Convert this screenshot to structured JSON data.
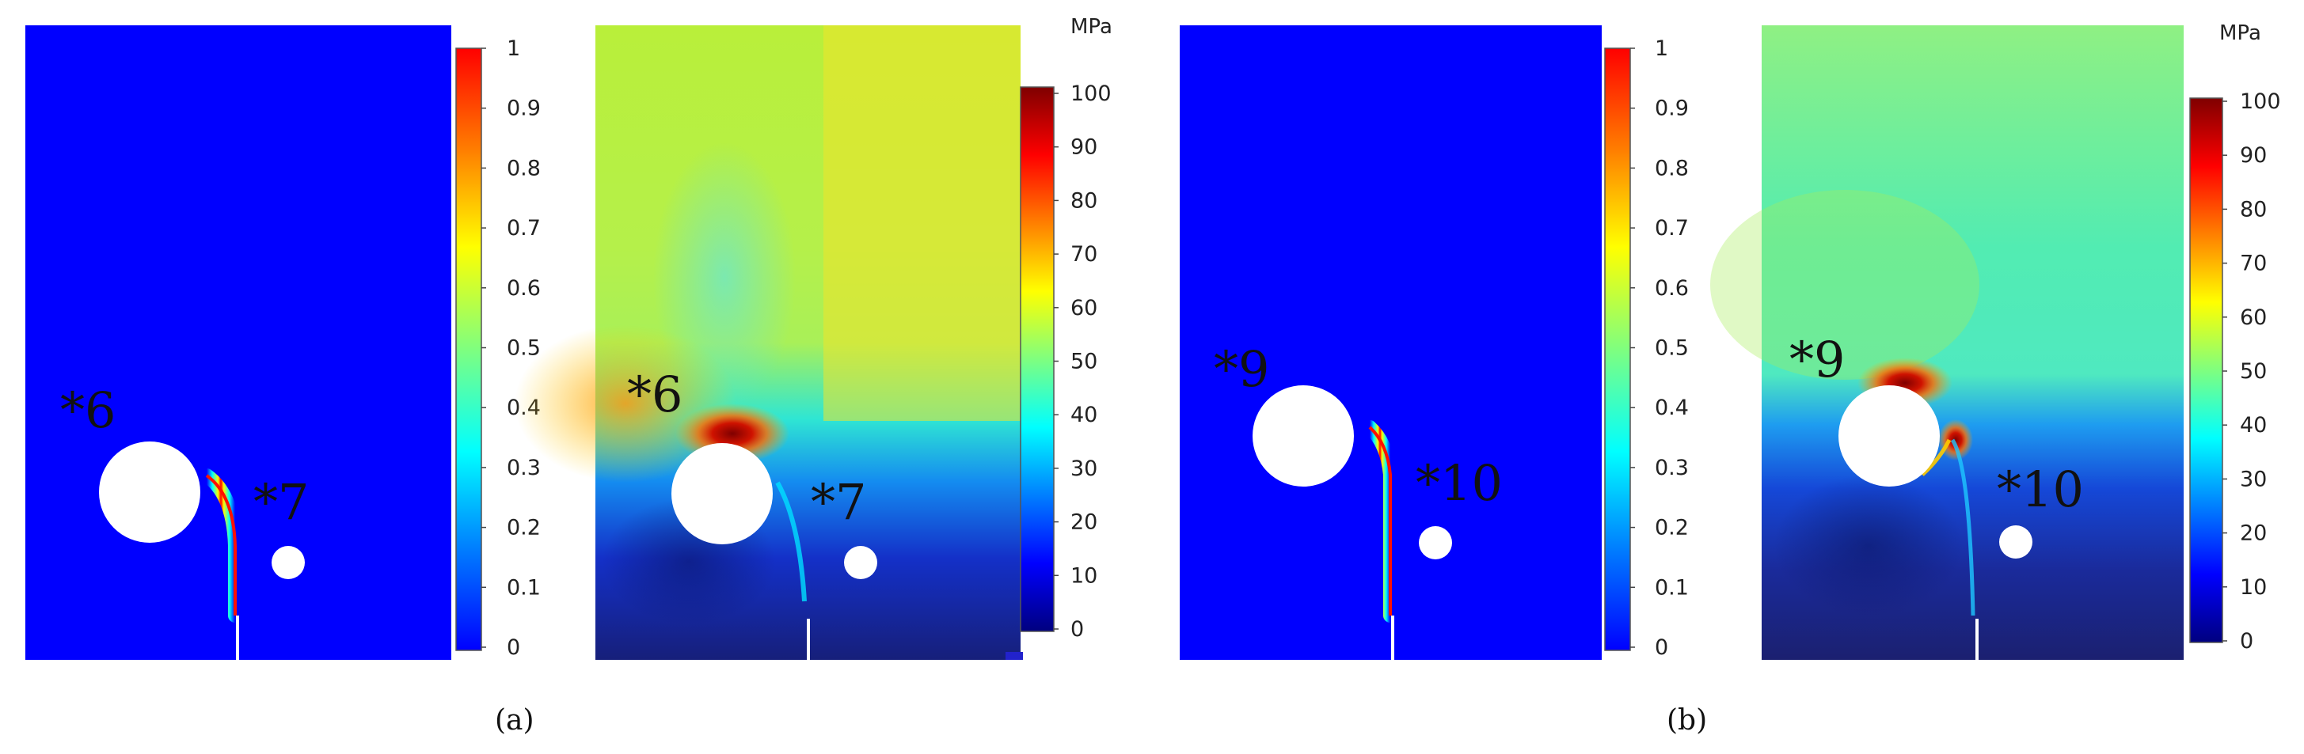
{
  "figure": {
    "subfigure_labels": [
      "(a)",
      "(b)"
    ]
  },
  "colormaps": {
    "jet": [
      "#00007f",
      "#0000ff",
      "#007fff",
      "#00ffff",
      "#7fff7f",
      "#ffff00",
      "#ff7f00",
      "#ff0000",
      "#7f0000"
    ],
    "damage_bar": [
      "#0000ff",
      "#007fff",
      "#00ffff",
      "#7fff7f",
      "#ffff00",
      "#ff7f00",
      "#ff0000"
    ]
  },
  "chart_data": [
    {
      "type": "heatmap",
      "field": "phase-field damage",
      "subfigure": "(a)",
      "colorbar": {
        "min": 0,
        "max": 1,
        "ticks": [
          "0",
          "0.1",
          "0.2",
          "0.3",
          "0.4",
          "0.5",
          "0.6",
          "0.7",
          "0.8",
          "0.9",
          "1"
        ],
        "unit": ""
      },
      "background_value": 0,
      "crack_value": 1,
      "annotations": [
        "*6",
        "*7"
      ]
    },
    {
      "type": "heatmap",
      "field": "stress",
      "subfigure": "(a)",
      "colorbar": {
        "min": 0,
        "max": 100,
        "ticks": [
          "0",
          "10",
          "20",
          "30",
          "40",
          "50",
          "60",
          "70",
          "80",
          "90",
          "100"
        ],
        "unit": "MPa"
      },
      "far_field_value": 65,
      "peak_value": 100,
      "annotations": [
        "*6",
        "*7"
      ]
    },
    {
      "type": "heatmap",
      "field": "phase-field damage",
      "subfigure": "(b)",
      "colorbar": {
        "min": 0,
        "max": 1,
        "ticks": [
          "0",
          "0.1",
          "0.2",
          "0.3",
          "0.4",
          "0.5",
          "0.6",
          "0.7",
          "0.8",
          "0.9",
          "1"
        ],
        "unit": ""
      },
      "background_value": 0,
      "crack_value": 1,
      "annotations": [
        "*9",
        "*10"
      ]
    },
    {
      "type": "heatmap",
      "field": "stress",
      "subfigure": "(b)",
      "colorbar": {
        "min": 0,
        "max": 100,
        "ticks": [
          "0",
          "10",
          "20",
          "30",
          "40",
          "50",
          "60",
          "70",
          "80",
          "90",
          "100"
        ],
        "unit": "MPa"
      },
      "far_field_value": 48,
      "peak_value": 100,
      "annotations": [
        "*9",
        "*10"
      ]
    }
  ]
}
